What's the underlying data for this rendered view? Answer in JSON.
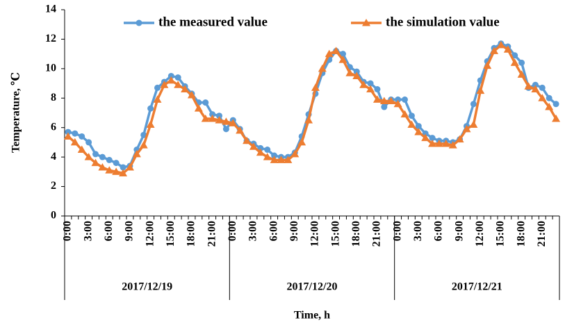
{
  "chart_data": {
    "type": "line",
    "y_label": "Temperature, ℃",
    "x_label": "Time, h",
    "categories": [
      "0:00",
      null,
      null,
      "3:00",
      null,
      null,
      "6:00",
      null,
      null,
      "9:00",
      null,
      null,
      "12:00",
      null,
      null,
      "15:00",
      null,
      null,
      "18:00",
      null,
      null,
      "21:00",
      null,
      null,
      "0:00",
      null,
      null,
      "3:00",
      null,
      null,
      "6:00",
      null,
      null,
      "9:00",
      null,
      null,
      "12:00",
      null,
      null,
      "15:00",
      null,
      null,
      "18:00",
      null,
      null,
      "21:00",
      null,
      null,
      "0:00",
      null,
      null,
      "3:00",
      null,
      null,
      "6:00",
      null,
      null,
      "9:00",
      null,
      null,
      "12:00",
      null,
      null,
      "15:00",
      null,
      null,
      "18:00",
      null,
      null,
      "21:00",
      null,
      null
    ],
    "groups": [
      "2017/12/19",
      "2017/12/20",
      "2017/12/21"
    ],
    "series": [
      {
        "name": "the measured value",
        "color": "#5b9bd5",
        "marker": "circle",
        "values": [
          5.7,
          5.6,
          5.4,
          5.0,
          4.2,
          4.0,
          3.8,
          3.6,
          3.3,
          3.4,
          4.5,
          5.5,
          7.3,
          8.7,
          9.1,
          9.5,
          9.4,
          8.8,
          8.3,
          7.7,
          7.7,
          6.9,
          6.8,
          5.9,
          6.5,
          5.9,
          5.1,
          4.9,
          4.6,
          4.5,
          4.1,
          4.0,
          4.0,
          4.3,
          5.4,
          6.9,
          8.3,
          9.7,
          10.6,
          11.2,
          11.0,
          10.1,
          9.8,
          9.1,
          9.0,
          8.6,
          7.4,
          7.9,
          7.9,
          7.9,
          6.8,
          6.1,
          5.6,
          5.3,
          5.1,
          5.1,
          5.0,
          5.2,
          6.1,
          7.6,
          9.2,
          10.5,
          11.4,
          11.7,
          11.5,
          10.9,
          10.4,
          8.7,
          8.9,
          8.7,
          8.0,
          7.6
        ]
      },
      {
        "name": "the simulation value",
        "color": "#ed7d31",
        "marker": "triangle",
        "values": [
          5.4,
          5.0,
          4.5,
          4.0,
          3.6,
          3.3,
          3.1,
          3.0,
          2.9,
          3.3,
          4.2,
          4.8,
          6.2,
          7.9,
          8.9,
          9.2,
          8.9,
          8.6,
          8.2,
          7.3,
          6.6,
          6.6,
          6.5,
          6.4,
          6.3,
          5.8,
          5.1,
          4.7,
          4.3,
          4.0,
          3.8,
          3.8,
          3.8,
          4.2,
          5.0,
          6.5,
          8.7,
          10.0,
          11.0,
          11.2,
          10.6,
          9.7,
          9.5,
          8.9,
          8.6,
          7.9,
          7.8,
          7.8,
          7.6,
          6.9,
          6.2,
          5.7,
          5.3,
          4.9,
          4.9,
          4.9,
          4.8,
          5.2,
          5.9,
          6.2,
          8.5,
          10.2,
          11.2,
          11.6,
          11.3,
          10.4,
          9.6,
          8.8,
          8.6,
          8.0,
          7.4,
          6.6
        ]
      }
    ],
    "ylim": [
      0,
      14
    ],
    "yticks": [
      0,
      2,
      4,
      6,
      8,
      10,
      12,
      14
    ],
    "legend": "top",
    "grid": false
  }
}
